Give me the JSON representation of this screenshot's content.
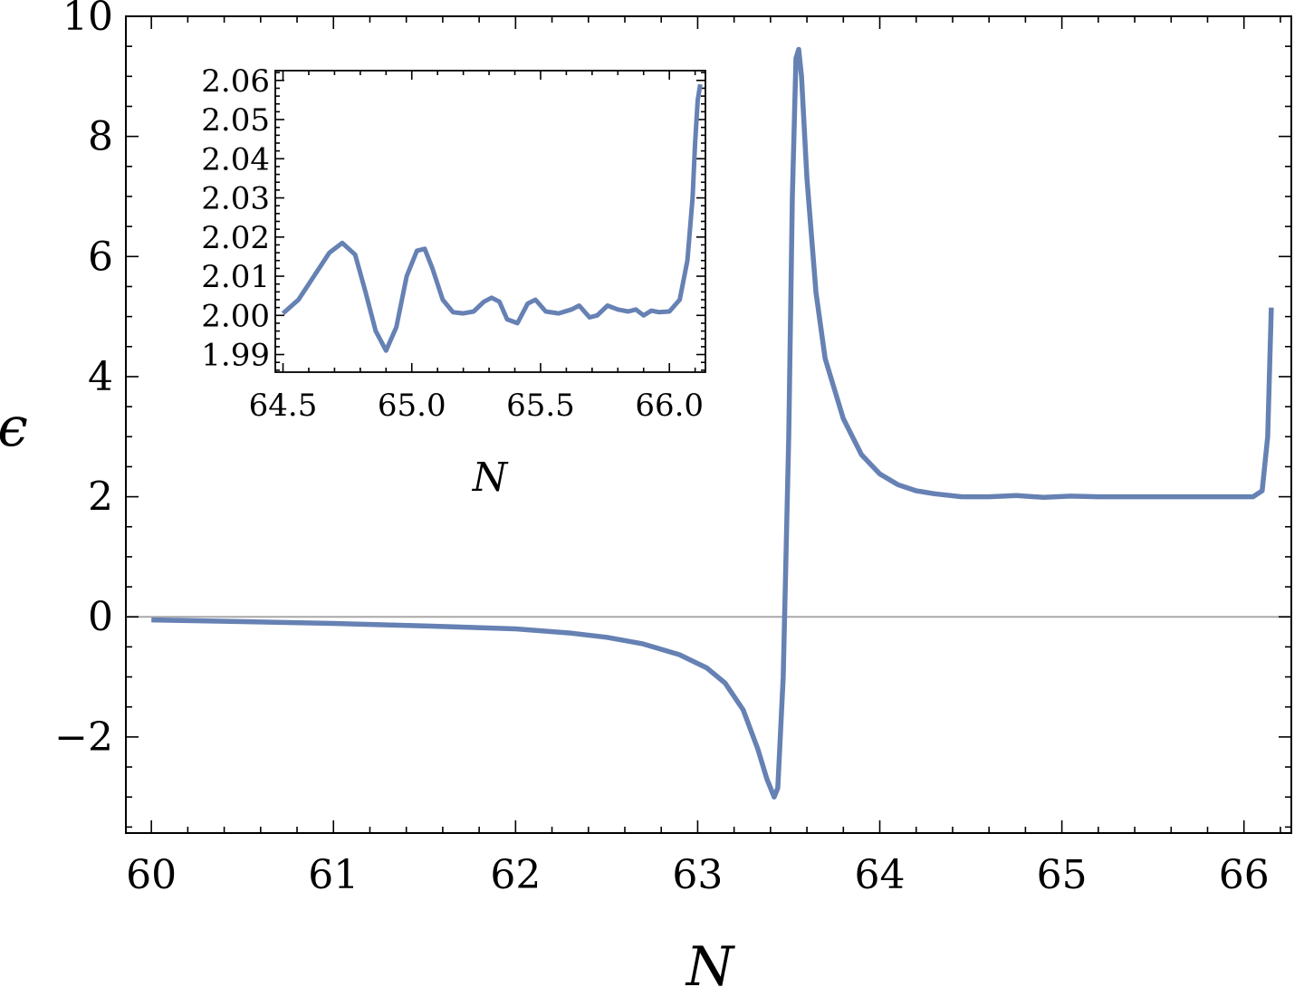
{
  "chart_data": [
    {
      "type": "line",
      "role": "main",
      "xlabel": "N",
      "ylabel": "ϵ",
      "xlim": [
        59.86,
        66.26
      ],
      "ylim": [
        -3.6,
        10
      ],
      "xticks": [
        60,
        61,
        62,
        63,
        64,
        65,
        66
      ],
      "xtick_labels": [
        "60",
        "61",
        "62",
        "63",
        "64",
        "65",
        "66"
      ],
      "yticks": [
        -2,
        0,
        2,
        4,
        6,
        8,
        10
      ],
      "ytick_labels": [
        "−2",
        "0",
        "2",
        "4",
        "6",
        "8",
        "10"
      ],
      "grid": false,
      "zero_line": true,
      "color": "#6681b3",
      "series": [
        {
          "x": [
            60.0,
            60.5,
            61.0,
            61.5,
            62.0,
            62.3,
            62.5,
            62.7,
            62.9,
            63.05,
            63.15,
            63.25,
            63.33,
            63.38,
            63.42,
            63.44,
            63.47,
            63.5,
            63.52,
            63.54,
            63.555,
            63.57,
            63.6,
            63.65,
            63.7,
            63.8,
            63.9,
            64.0,
            64.1,
            64.2,
            64.3,
            64.45,
            64.6,
            64.75,
            64.9,
            65.05,
            65.2,
            65.35,
            65.5,
            65.7,
            65.9,
            66.05,
            66.1,
            66.13,
            66.15
          ],
          "y": [
            -0.05,
            -0.08,
            -0.11,
            -0.15,
            -0.2,
            -0.27,
            -0.34,
            -0.45,
            -0.63,
            -0.85,
            -1.1,
            -1.55,
            -2.2,
            -2.7,
            -3.0,
            -2.85,
            -1.0,
            3.0,
            7.0,
            9.3,
            9.45,
            9.0,
            7.3,
            5.4,
            4.3,
            3.3,
            2.7,
            2.38,
            2.2,
            2.1,
            2.05,
            2.0,
            2.0,
            2.02,
            1.99,
            2.01,
            2.0,
            2.0,
            2.0,
            2.0,
            2.0,
            2.0,
            2.1,
            3.0,
            5.15
          ]
        }
      ]
    },
    {
      "type": "line",
      "role": "inset",
      "xlabel": "N",
      "ylabel": "",
      "xlim": [
        64.47,
        66.14
      ],
      "ylim": [
        1.9855,
        2.0625
      ],
      "xticks": [
        64.5,
        65.0,
        65.5,
        66.0
      ],
      "xtick_labels": [
        "64.5",
        "65.0",
        "65.5",
        "66.0"
      ],
      "yticks": [
        1.99,
        2.0,
        2.01,
        2.02,
        2.03,
        2.04,
        2.05,
        2.06
      ],
      "ytick_labels": [
        "1.99",
        "2.00",
        "2.01",
        "2.02",
        "2.03",
        "2.04",
        "2.05",
        "2.06"
      ],
      "grid": false,
      "color": "#6681b3",
      "series": [
        {
          "x": [
            64.5,
            64.56,
            64.62,
            64.68,
            64.73,
            64.78,
            64.82,
            64.86,
            64.9,
            64.94,
            64.98,
            65.02,
            65.05,
            65.08,
            65.12,
            65.16,
            65.2,
            65.24,
            65.28,
            65.31,
            65.34,
            65.37,
            65.41,
            65.45,
            65.48,
            65.52,
            65.57,
            65.62,
            65.65,
            65.69,
            65.72,
            65.76,
            65.8,
            65.84,
            65.87,
            65.9,
            65.93,
            65.96,
            66.0,
            66.04,
            66.07,
            66.09,
            66.1,
            66.11,
            66.12
          ],
          "y": [
            2.0005,
            2.004,
            2.01,
            2.016,
            2.0185,
            2.0155,
            2.006,
            1.996,
            1.991,
            1.997,
            2.01,
            2.0165,
            2.017,
            2.012,
            2.004,
            2.0008,
            2.0005,
            2.001,
            2.0035,
            2.0045,
            2.0035,
            1.999,
            1.998,
            2.003,
            2.004,
            2.001,
            2.0005,
            2.0015,
            2.0025,
            1.9995,
            2.0,
            2.0025,
            2.0015,
            2.001,
            2.0015,
            2.0,
            2.0012,
            2.0008,
            2.001,
            2.004,
            2.014,
            2.03,
            2.044,
            2.055,
            2.059
          ]
        }
      ]
    }
  ]
}
